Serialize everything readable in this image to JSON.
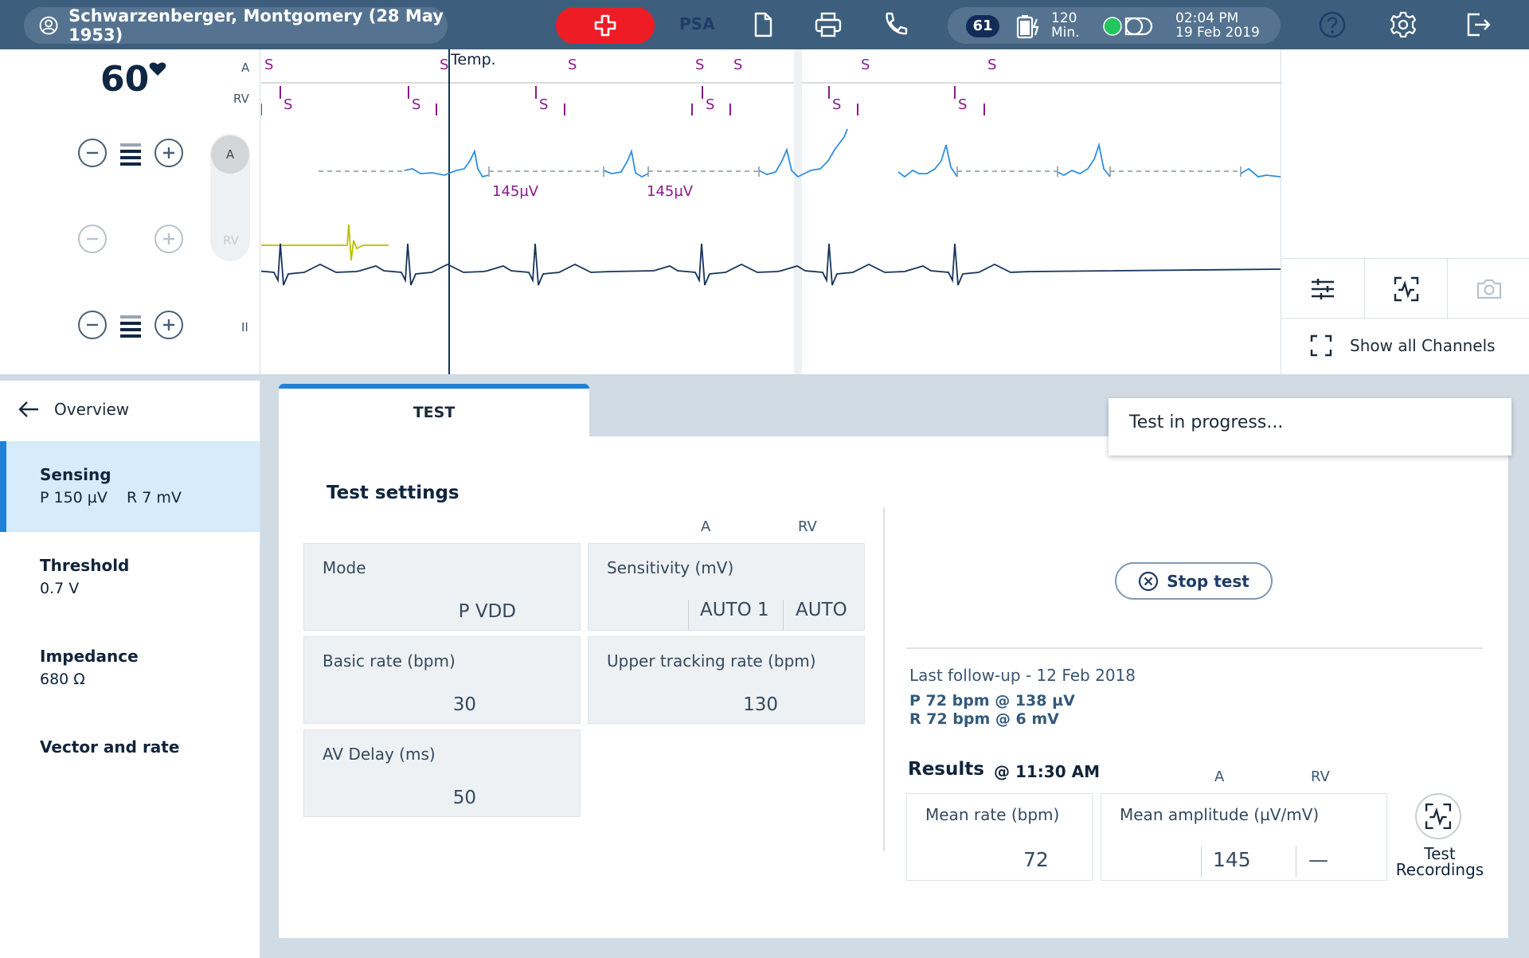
{
  "header": {
    "patient": "Schwarzenberger, Montgomery (28 May 1953)",
    "mode_label": "PSA",
    "heart_rate_badge": "61",
    "battery_line1": "120",
    "battery_line2": "Min.",
    "time": "02:04 PM",
    "date": "19 Feb 2019",
    "icons": [
      "user-icon",
      "emergency-icon",
      "document-icon",
      "print-icon",
      "phone-icon",
      "battery-icon",
      "connection-icon",
      "help-icon",
      "settings-icon",
      "logout-icon"
    ],
    "colors": {
      "bar": "#3d5f7d",
      "emergency": "#ee1c24",
      "status_ok": "#22c55e"
    }
  },
  "ecg": {
    "heart_rate": "60",
    "channels": {
      "a": "A",
      "rv": "RV",
      "ii": "II"
    },
    "toggle_a": "A",
    "toggle_rv": "RV",
    "marker_label": "S",
    "temp_label": "Temp.",
    "amp_label_1": "145µV",
    "amp_label_2": "145µV",
    "colors": {
      "atrial": "#2f8fe0",
      "marker": "#8b1a8b",
      "rv": "#b8bf00",
      "surface": "#16345a"
    }
  },
  "right_panel": {
    "tools": [
      "filter-icon",
      "recording-icon",
      "camera-icon"
    ],
    "show_all_channels": "Show all Channels"
  },
  "sidebar": {
    "back_label": "Overview",
    "items": [
      {
        "title": "Sensing",
        "value": "P 150 µV    R 7 mV",
        "active": true
      },
      {
        "title": "Threshold",
        "value": "0.7 V"
      },
      {
        "title": "Impedance",
        "value": "680 Ω"
      },
      {
        "title": "Vector and rate",
        "value": ""
      }
    ]
  },
  "main": {
    "tab_label": "TEST",
    "toast": "Test in progress...",
    "test_settings": {
      "title": "Test settings",
      "col_a": "A",
      "col_rv": "RV",
      "mode": {
        "label": "Mode",
        "value": "P VDD"
      },
      "sensitivity": {
        "label": "Sensitivity (mV)",
        "a": "AUTO 1",
        "rv": "AUTO"
      },
      "basic_rate": {
        "label": "Basic rate (bpm)",
        "value": "30"
      },
      "upper_tracking": {
        "label": "Upper tracking rate (bpm)",
        "value": "130"
      },
      "av_delay": {
        "label": "AV Delay (ms)",
        "value": "50"
      }
    },
    "stop_test": "Stop test",
    "last_follow_up": "Last follow-up - 12 Feb 2018",
    "fu_p": "P 72 bpm @ 138 µV",
    "fu_r": "R 72 bpm @ 6 mV",
    "results": {
      "title": "Results",
      "time": "@ 11:30 AM",
      "col_a": "A",
      "col_rv": "RV",
      "mean_rate_label": "Mean rate (bpm)",
      "mean_rate": "72",
      "mean_amp_label": "Mean amplitude (µV/mV)",
      "mean_amp_a": "145",
      "mean_amp_rv": "—"
    },
    "test_recordings_l1": "Test",
    "test_recordings_l2": "Recordings"
  }
}
